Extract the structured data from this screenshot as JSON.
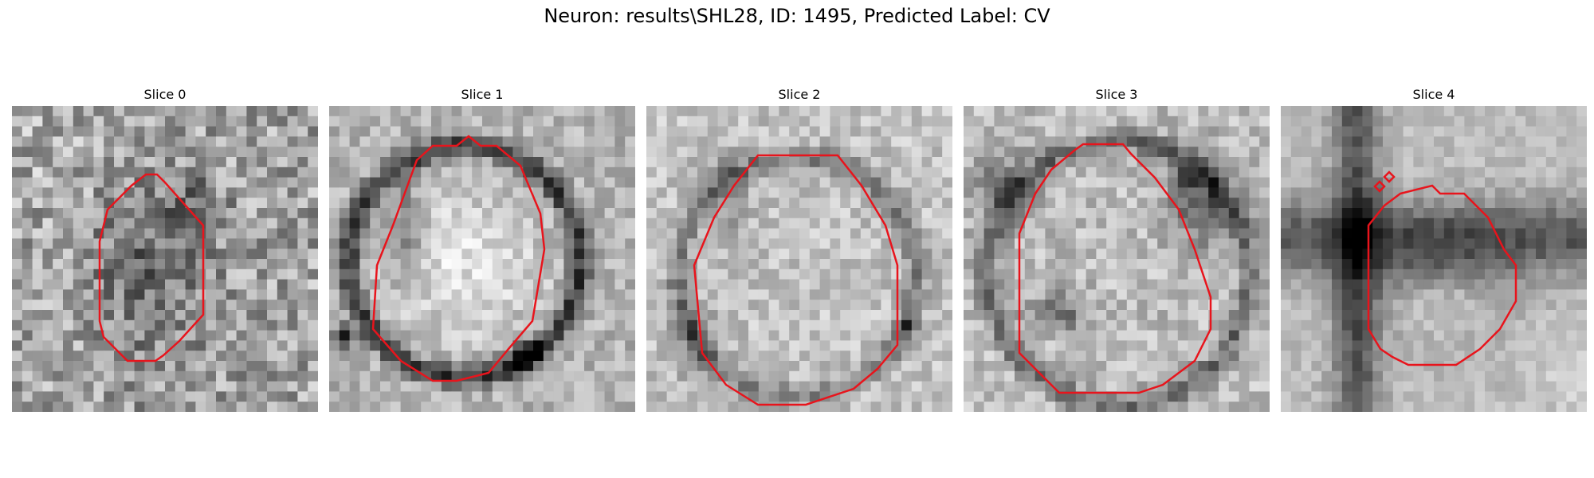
{
  "figure": {
    "title": "Neuron: results\\SHL28, ID: 1495, Predicted Label: CV"
  },
  "contour_color": "#e8141c",
  "colormap": "gray",
  "panels": [
    {
      "title": "Slice 0"
    },
    {
      "title": "Slice 1"
    },
    {
      "title": "Slice 2"
    },
    {
      "title": "Slice 3"
    },
    {
      "title": "Slice 4"
    }
  ]
}
